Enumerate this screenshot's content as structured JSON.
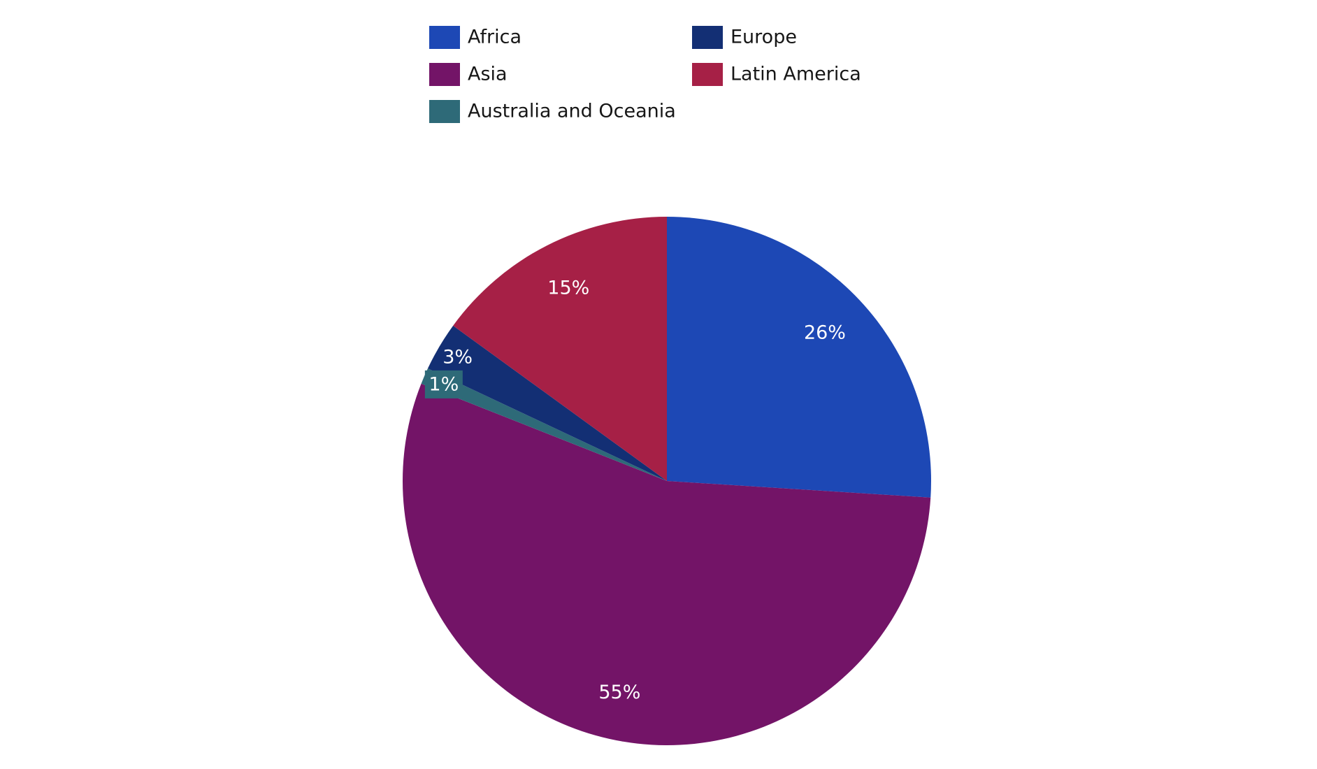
{
  "chart_data": {
    "type": "pie",
    "categories": [
      "Africa",
      "Asia",
      "Australia and Oceania",
      "Europe",
      "Latin America"
    ],
    "values": [
      26,
      55,
      1,
      3,
      15
    ],
    "value_labels": [
      "26%",
      "55%",
      "1%",
      "3%",
      "15%"
    ],
    "colors": [
      "#1d48b5",
      "#731467",
      "#2e6a78",
      "#132f74",
      "#a62046"
    ],
    "legend": "top"
  }
}
